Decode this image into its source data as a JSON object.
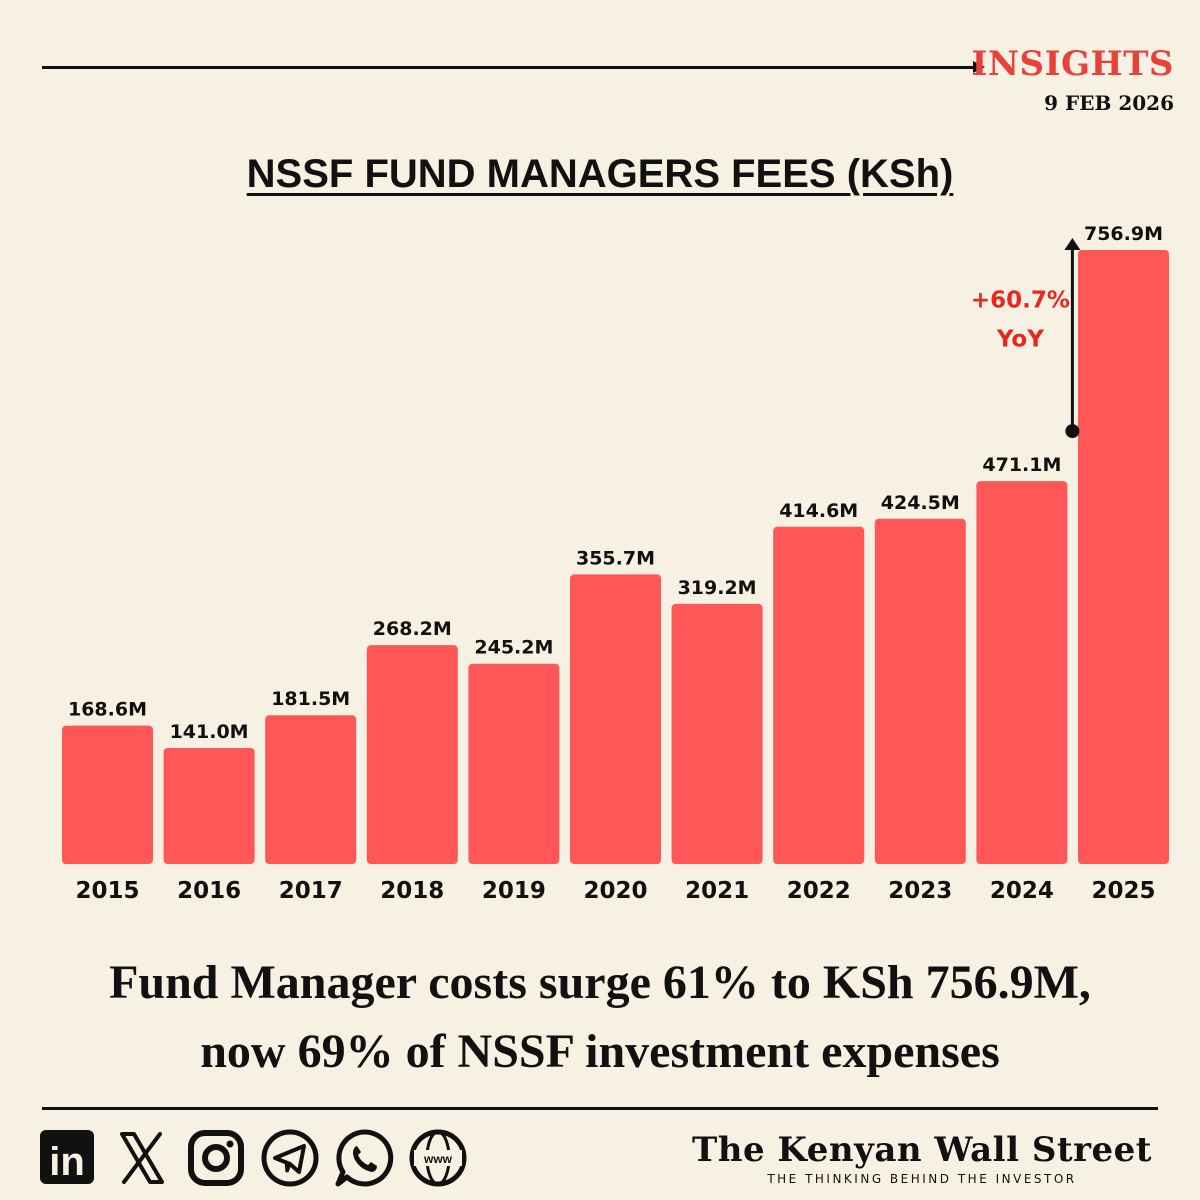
{
  "header": {
    "insights_label": "INSIGHTS",
    "date": "9 FEB 2026"
  },
  "chart_data": {
    "type": "bar",
    "title": "NSSF FUND MANAGERS FEES (KSh)",
    "categories": [
      "2015",
      "2016",
      "2017",
      "2018",
      "2019",
      "2020",
      "2021",
      "2022",
      "2023",
      "2024",
      "2025"
    ],
    "values": [
      168.6,
      141.0,
      181.5,
      268.2,
      245.2,
      355.7,
      319.2,
      414.6,
      424.5,
      471.1,
      756.9
    ],
    "value_labels": [
      "168.6M",
      "141.0M",
      "181.5M",
      "268.2M",
      "245.2M",
      "355.7M",
      "319.2M",
      "414.6M",
      "424.5M",
      "471.1M",
      "756.9M"
    ],
    "ylim": [
      0,
      756.9
    ],
    "grid": false,
    "bar_color": "#ff5757",
    "annotation": {
      "from": "2024",
      "to": "2025",
      "line1": "+60.7%",
      "line2": "YoY",
      "color": "#e8281e"
    }
  },
  "headline": {
    "line1": "Fund Manager costs surge 61% to KSh 756.9M,",
    "line2": "now 69% of NSSF investment expenses"
  },
  "footer": {
    "icons": [
      "linkedin-icon",
      "x-icon",
      "instagram-icon",
      "telegram-icon",
      "whatsapp-icon",
      "website-icon"
    ],
    "linkedin_text": "in",
    "www_text": "www",
    "brand_name": "The Kenyan Wall Street",
    "brand_tagline": "THE THINKING BEHIND THE INVESTOR"
  },
  "colors": {
    "background": "#f7f1e3",
    "accent": "#e8413c",
    "bar": "#ff5757",
    "text": "#111111"
  }
}
